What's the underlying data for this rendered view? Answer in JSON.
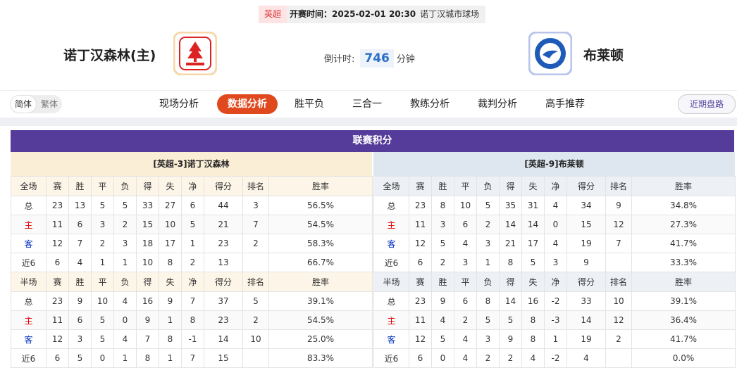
{
  "match": {
    "league": "英超",
    "kickoff": "开赛时间：2025-02-01 20:30",
    "venue": "诺丁汉城市球场"
  },
  "home": {
    "name": "诺丁汉森林(主)"
  },
  "countdown": {
    "label": "倒计时:",
    "value": 746,
    "unit": "分钟"
  },
  "away": {
    "name": "布莱顿"
  },
  "lang": [
    "简体",
    "繁体"
  ],
  "tabs": [
    "现场分析",
    "数据分析",
    "胜平负",
    "三合一",
    "教练分析",
    "裁判分析",
    "高手推荐"
  ],
  "right_button": "近期盘路",
  "standings": {
    "title": "联赛积分",
    "teams": [
      {
        "name": "[英超-3]诺丁汉森林",
        "full": {
          "header": [
            "全场",
            "赛",
            "胜",
            "平",
            "负",
            "得",
            "失",
            "净",
            "得分",
            "排名",
            "胜率"
          ],
          "rows": [
            [
              "总",
              23,
              13,
              5,
              5,
              33,
              27,
              6,
              44,
              3,
              "56.5%"
            ],
            [
              "主",
              11,
              6,
              3,
              2,
              15,
              10,
              5,
              21,
              7,
              "54.5%"
            ],
            [
              "客",
              12,
              7,
              2,
              3,
              18,
              17,
              1,
              23,
              2,
              "58.3%"
            ],
            [
              "近6",
              6,
              4,
              1,
              1,
              10,
              8,
              2,
              13,
              null,
              "66.7%"
            ]
          ]
        },
        "half": {
          "header": [
            "半场",
            "赛",
            "胜",
            "平",
            "负",
            "得",
            "失",
            "净",
            "得分",
            "排名",
            "胜率"
          ],
          "rows": [
            [
              "总",
              23,
              9,
              10,
              4,
              16,
              9,
              7,
              37,
              5,
              "39.1%"
            ],
            [
              "主",
              11,
              6,
              5,
              0,
              9,
              1,
              8,
              23,
              2,
              "54.5%"
            ],
            [
              "客",
              12,
              3,
              5,
              4,
              7,
              8,
              -1,
              14,
              10,
              "25.0%"
            ],
            [
              "近6",
              6,
              5,
              0,
              1,
              8,
              1,
              7,
              15,
              null,
              "83.3%"
            ]
          ]
        }
      },
      {
        "name": "[英超-9]布莱顿",
        "full": {
          "header": [
            "全场",
            "赛",
            "胜",
            "平",
            "负",
            "得",
            "失",
            "净",
            "得分",
            "排名",
            "胜率"
          ],
          "rows": [
            [
              "总",
              23,
              8,
              10,
              5,
              35,
              31,
              4,
              34,
              9,
              "34.8%"
            ],
            [
              "主",
              11,
              3,
              6,
              2,
              14,
              14,
              0,
              15,
              12,
              "27.3%"
            ],
            [
              "客",
              12,
              5,
              4,
              3,
              21,
              17,
              4,
              19,
              7,
              "41.7%"
            ],
            [
              "近6",
              6,
              2,
              3,
              1,
              8,
              5,
              3,
              9,
              null,
              "33.3%"
            ]
          ]
        },
        "half": {
          "header": [
            "半场",
            "赛",
            "胜",
            "平",
            "负",
            "得",
            "失",
            "净",
            "得分",
            "排名",
            "胜率"
          ],
          "rows": [
            [
              "总",
              23,
              9,
              6,
              8,
              14,
              16,
              -2,
              33,
              10,
              "39.1%"
            ],
            [
              "主",
              11,
              4,
              2,
              5,
              5,
              8,
              -3,
              14,
              12,
              "36.4%"
            ],
            [
              "客",
              12,
              5,
              4,
              3,
              9,
              8,
              1,
              19,
              2,
              "41.7%"
            ],
            [
              "近6",
              6,
              0,
              4,
              2,
              2,
              4,
              -2,
              4,
              null,
              "0.0%"
            ]
          ]
        }
      }
    ]
  }
}
